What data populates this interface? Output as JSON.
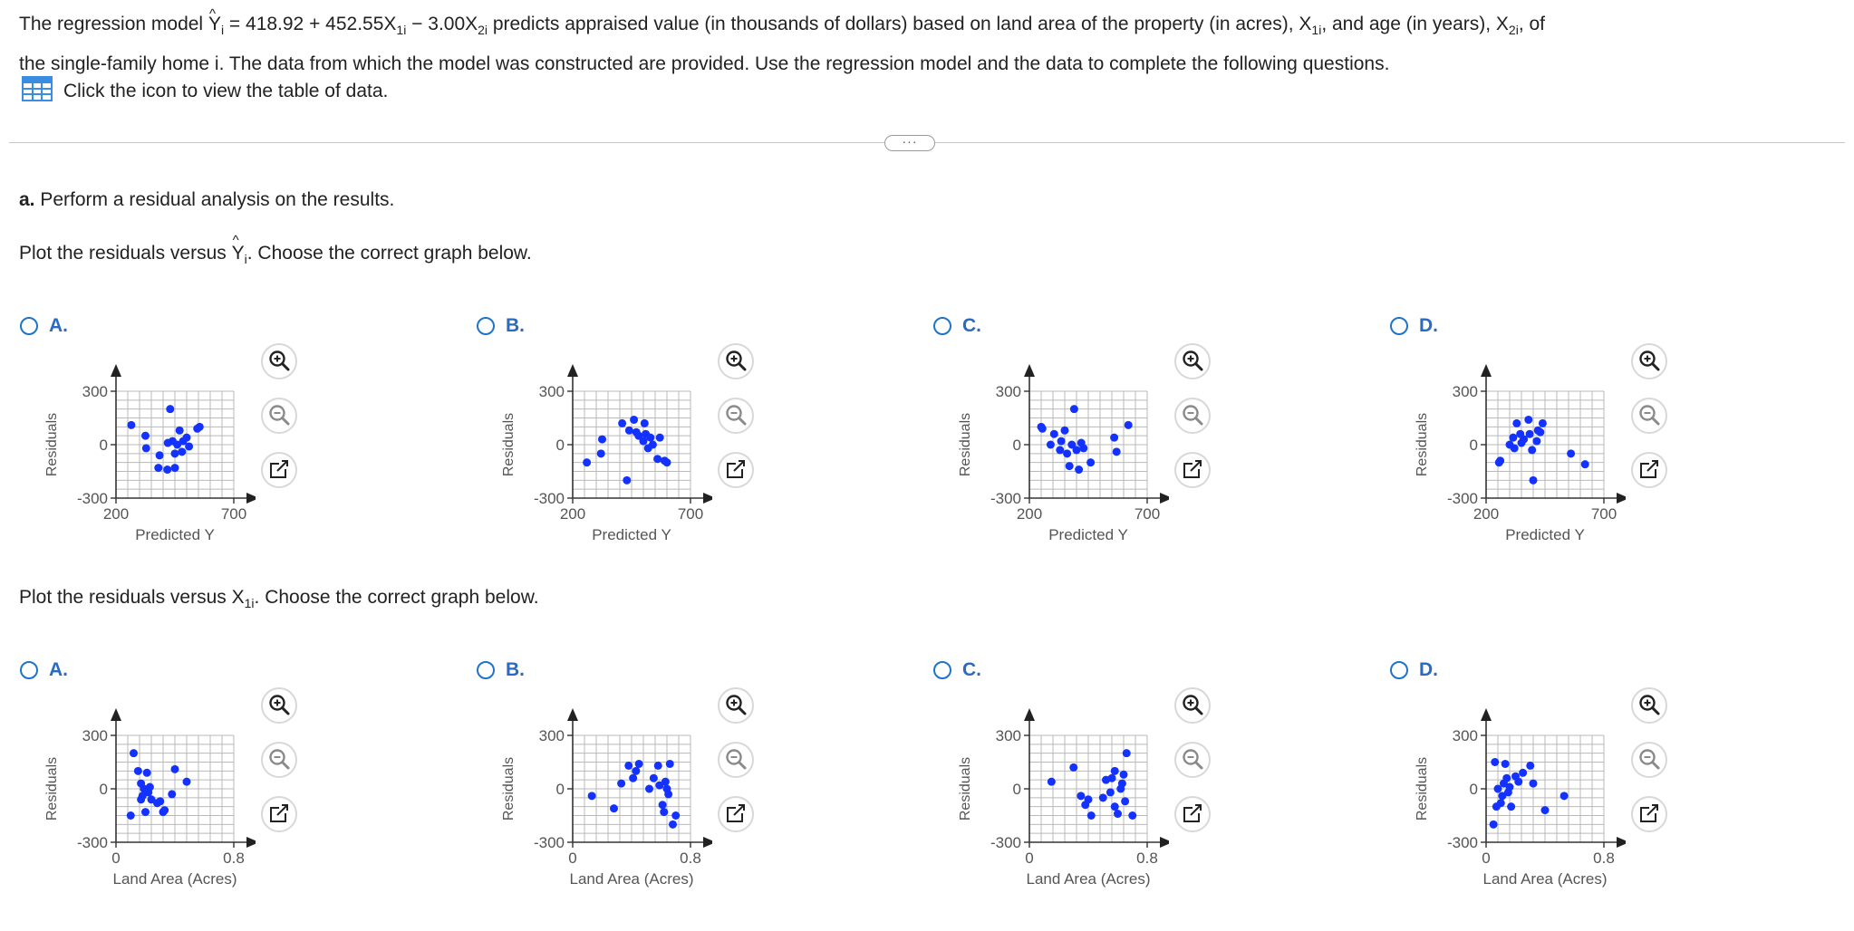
{
  "intro": {
    "line1_a": "The regression model ",
    "yhat": "Y",
    "yhat_sub": "i",
    "model_eq_a": " = 418.92 + 452.55X",
    "x1_sub": "1i",
    "model_eq_b": " − 3.00X",
    "x2_sub": "2i",
    "line1_b": " predicts appraised value (in thousands of dollars) based on land area of the property (in acres), X",
    "line1_c": ", and age (in years), X",
    "line1_d": ", of",
    "line2": "the single-family home i. The data from which the model was constructed are provided. Use the regression model and the data to complete the following questions.",
    "table_link": "Click the icon to view the table of data.",
    "table_icon": "table-grid-icon"
  },
  "divider_button": "···",
  "part_a": {
    "label": "a.",
    "text": " Perform a residual analysis on the results."
  },
  "q1": {
    "text_a": "Plot the residuals versus ",
    "yhat": "Y",
    "yhat_sub": "i",
    "text_b": ". Choose the correct graph below."
  },
  "q2": {
    "text_a": "Plot the residuals versus X",
    "x_sub": "1i",
    "text_b": ". Choose the correct graph below."
  },
  "option_letters": [
    "A.",
    "B.",
    "C.",
    "D."
  ],
  "colors": {
    "dots": "#1432ff",
    "accent": "#2a6bc1",
    "grid": "#b9b9b9",
    "radio": "#1f74c9"
  },
  "icons": [
    "zoom-in-icon",
    "zoom-out-icon",
    "open-new-window-icon"
  ],
  "chart_data": [
    {
      "type": "scatter",
      "id": "q1-A",
      "ylabel": "Residuals",
      "xlabel": "Predicted Y",
      "xticks": [
        "200",
        "700"
      ],
      "yticks": [
        "300",
        "0",
        "-300"
      ],
      "xlim": [
        200,
        700
      ],
      "ylim": [
        -300,
        300
      ],
      "x": [
        265,
        325,
        328,
        380,
        385,
        418,
        420,
        430,
        440,
        450,
        450,
        460,
        470,
        480,
        485,
        500,
        510,
        545,
        555
      ],
      "y": [
        110,
        50,
        -20,
        -130,
        -60,
        -140,
        10,
        200,
        20,
        -50,
        -130,
        0,
        80,
        -40,
        20,
        40,
        -10,
        90,
        100
      ]
    },
    {
      "type": "scatter",
      "id": "q1-B",
      "ylabel": "Residuals",
      "xlabel": "Predicted Y",
      "xticks": [
        "200",
        "700"
      ],
      "yticks": [
        "300",
        "0",
        "-300"
      ],
      "xlim": [
        200,
        700
      ],
      "ylim": [
        -300,
        300
      ],
      "x": [
        260,
        320,
        325,
        410,
        430,
        440,
        460,
        470,
        480,
        500,
        505,
        510,
        520,
        530,
        540,
        560,
        570,
        590,
        600
      ],
      "y": [
        -100,
        -50,
        30,
        120,
        -200,
        80,
        140,
        70,
        50,
        20,
        120,
        60,
        -20,
        40,
        0,
        -80,
        40,
        -90,
        -100
      ]
    },
    {
      "type": "scatter",
      "id": "q1-C",
      "ylabel": "Residuals",
      "xlabel": "Predicted Y",
      "xticks": [
        "200",
        "700"
      ],
      "yticks": [
        "300",
        "0",
        "-300"
      ],
      "xlim": [
        200,
        700
      ],
      "ylim": [
        -300,
        300
      ],
      "x": [
        250,
        255,
        290,
        305,
        330,
        335,
        350,
        360,
        370,
        380,
        390,
        400,
        410,
        420,
        430,
        460,
        560,
        570,
        620
      ],
      "y": [
        100,
        90,
        0,
        60,
        -30,
        20,
        80,
        -50,
        -120,
        0,
        200,
        -30,
        -140,
        10,
        -20,
        -100,
        40,
        -40,
        110
      ]
    },
    {
      "type": "scatter",
      "id": "q1-D",
      "ylabel": "Residuals",
      "xlabel": "Predicted Y",
      "xticks": [
        "200",
        "700"
      ],
      "yticks": [
        "300",
        "0",
        "-300"
      ],
      "xlim": [
        200,
        700
      ],
      "ylim": [
        -300,
        300
      ],
      "x": [
        255,
        260,
        300,
        315,
        320,
        330,
        345,
        350,
        360,
        380,
        385,
        395,
        400,
        415,
        420,
        430,
        440,
        560,
        620
      ],
      "y": [
        -100,
        -90,
        0,
        40,
        -20,
        120,
        60,
        10,
        30,
        140,
        60,
        -30,
        -200,
        20,
        80,
        70,
        120,
        -50,
        -110
      ]
    },
    {
      "type": "scatter",
      "id": "q2-A",
      "ylabel": "Residuals",
      "xlabel": "Land Area (Acres)",
      "xticks": [
        "0",
        "0.8"
      ],
      "yticks": [
        "300",
        "0",
        "-300"
      ],
      "xlim": [
        0,
        0.8
      ],
      "ylim": [
        -300,
        300
      ],
      "x": [
        0.1,
        0.12,
        0.15,
        0.17,
        0.17,
        0.18,
        0.19,
        0.2,
        0.21,
        0.22,
        0.23,
        0.24,
        0.28,
        0.3,
        0.32,
        0.33,
        0.38,
        0.4,
        0.48
      ],
      "y": [
        -150,
        200,
        100,
        30,
        -60,
        -40,
        0,
        -130,
        90,
        -20,
        10,
        -60,
        -80,
        -70,
        -130,
        -120,
        -30,
        110,
        40
      ]
    },
    {
      "type": "scatter",
      "id": "q2-B",
      "ylabel": "Residuals",
      "xlabel": "Land Area (Acres)",
      "xticks": [
        "0",
        "0.8"
      ],
      "yticks": [
        "300",
        "0",
        "-300"
      ],
      "xlim": [
        0,
        0.8
      ],
      "ylim": [
        -300,
        300
      ],
      "x": [
        0.13,
        0.28,
        0.33,
        0.38,
        0.41,
        0.43,
        0.45,
        0.52,
        0.55,
        0.58,
        0.59,
        0.61,
        0.62,
        0.63,
        0.64,
        0.65,
        0.66,
        0.68,
        0.7
      ],
      "y": [
        -40,
        -110,
        30,
        130,
        60,
        100,
        140,
        0,
        60,
        130,
        20,
        -90,
        -130,
        40,
        0,
        -30,
        140,
        -200,
        -150
      ]
    },
    {
      "type": "scatter",
      "id": "q2-C",
      "ylabel": "Residuals",
      "xlabel": "Land Area (Acres)",
      "xticks": [
        "0",
        "0.8"
      ],
      "yticks": [
        "300",
        "0",
        "-300"
      ],
      "xlim": [
        0,
        0.8
      ],
      "ylim": [
        -300,
        300
      ],
      "x": [
        0.15,
        0.3,
        0.35,
        0.38,
        0.4,
        0.42,
        0.5,
        0.52,
        0.55,
        0.56,
        0.58,
        0.58,
        0.6,
        0.62,
        0.63,
        0.64,
        0.65,
        0.66,
        0.7
      ],
      "y": [
        40,
        120,
        -40,
        -90,
        -60,
        -150,
        -50,
        50,
        -20,
        60,
        -100,
        100,
        -140,
        0,
        30,
        80,
        -70,
        200,
        -150
      ]
    },
    {
      "type": "scatter",
      "id": "q2-D",
      "ylabel": "Residuals",
      "xlabel": "Land Area (Acres)",
      "xticks": [
        "0",
        "0.8"
      ],
      "yticks": [
        "300",
        "0",
        "-300"
      ],
      "xlim": [
        0,
        0.8
      ],
      "ylim": [
        -300,
        300
      ],
      "x": [
        0.05,
        0.06,
        0.07,
        0.08,
        0.1,
        0.11,
        0.12,
        0.13,
        0.14,
        0.15,
        0.16,
        0.17,
        0.2,
        0.22,
        0.25,
        0.3,
        0.32,
        0.4,
        0.53
      ],
      "y": [
        -200,
        150,
        -100,
        0,
        -80,
        -40,
        30,
        140,
        60,
        -20,
        10,
        -100,
        70,
        40,
        90,
        130,
        30,
        -120,
        -40
      ]
    }
  ]
}
